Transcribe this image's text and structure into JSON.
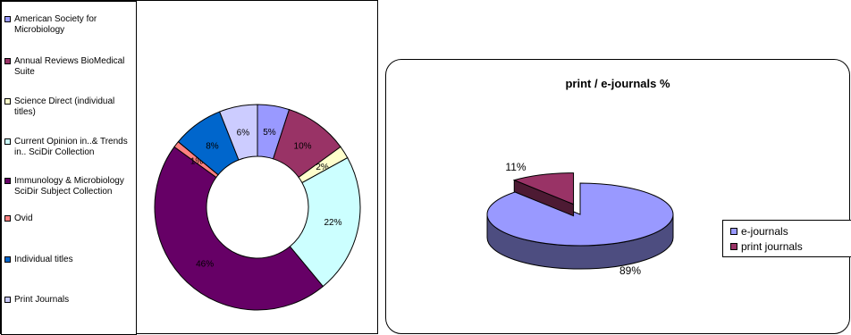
{
  "chart_data": [
    {
      "type": "pie",
      "variant": "doughnut",
      "title": "",
      "categories": [
        "American Society for Microbiology",
        "Annual Reviews BioMedical Suite",
        "Science Direct (individual titles)",
        "Current Opinion in..& Trends in.. SciDir Collection",
        "Immunology & Microbiology SciDir Subject Collection",
        "Ovid",
        "Individual titles",
        "Print Journals"
      ],
      "values": [
        5,
        10,
        2,
        22,
        46,
        1,
        8,
        6
      ],
      "data_labels": [
        "5%",
        "10%",
        "2%",
        "22%",
        "46%",
        "1%",
        "8%",
        "6%"
      ],
      "colors": [
        "#9999ff",
        "#993366",
        "#ffffcc",
        "#ccffff",
        "#660066",
        "#ff8080",
        "#0066cc",
        "#ccccff"
      ],
      "legend_position": "left"
    },
    {
      "type": "pie",
      "variant": "3d-exploded",
      "title": "print / e-journals %",
      "categories": [
        "e-journals",
        "print journals"
      ],
      "values": [
        89,
        11
      ],
      "data_labels": [
        "89%",
        "11%"
      ],
      "colors": [
        "#9999ff",
        "#993366"
      ],
      "side_colors": [
        "#4d4d80",
        "#4d1a33"
      ],
      "legend_position": "right"
    }
  ]
}
